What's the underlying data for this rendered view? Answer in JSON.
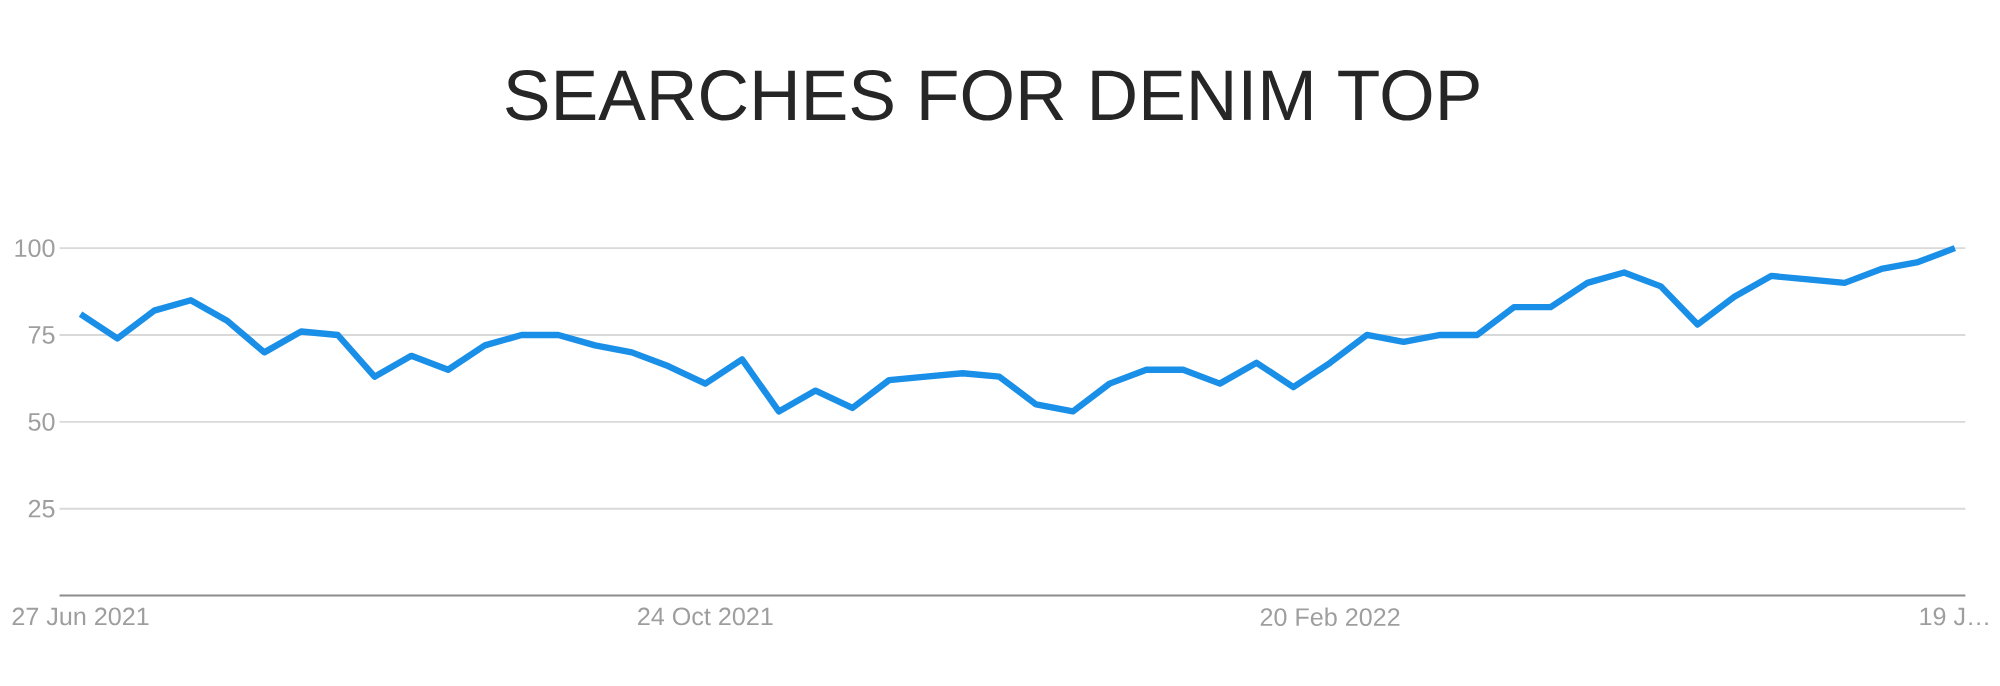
{
  "chart_data": {
    "type": "line",
    "title": "SEARCHES FOR DENIM TOP",
    "x": [
      "2021-06-27",
      "2021-07-04",
      "2021-07-11",
      "2021-07-18",
      "2021-07-25",
      "2021-08-01",
      "2021-08-08",
      "2021-08-15",
      "2021-08-22",
      "2021-08-29",
      "2021-09-05",
      "2021-09-12",
      "2021-09-19",
      "2021-09-26",
      "2021-10-03",
      "2021-10-10",
      "2021-10-17",
      "2021-10-24",
      "2021-10-31",
      "2021-11-07",
      "2021-11-14",
      "2021-11-21",
      "2021-11-28",
      "2021-12-05",
      "2021-12-12",
      "2021-12-19",
      "2021-12-26",
      "2022-01-02",
      "2022-01-09",
      "2022-01-16",
      "2022-01-23",
      "2022-01-30",
      "2022-02-06",
      "2022-02-13",
      "2022-02-20",
      "2022-02-27",
      "2022-03-06",
      "2022-03-13",
      "2022-03-20",
      "2022-03-27",
      "2022-04-03",
      "2022-04-10",
      "2022-04-17",
      "2022-04-24",
      "2022-05-01",
      "2022-05-08",
      "2022-05-15",
      "2022-05-22",
      "2022-05-29",
      "2022-06-05",
      "2022-06-12",
      "2022-06-19"
    ],
    "series": [
      {
        "color": "#1a8fe8",
        "values": [
          81,
          74,
          82,
          85,
          79,
          70,
          76,
          75,
          63,
          69,
          65,
          72,
          75,
          75,
          72,
          70,
          66,
          61,
          68,
          53,
          59,
          54,
          62,
          63,
          64,
          63,
          55,
          53,
          61,
          65,
          65,
          61,
          67,
          60,
          67,
          75,
          73,
          75,
          75,
          83,
          83,
          90,
          93,
          89,
          78,
          86,
          92,
          91,
          90,
          94,
          96,
          100
        ]
      }
    ],
    "xlim": [
      "2021-06-23",
      "2022-06-21"
    ],
    "xticks": [
      {
        "value": "2021-06-27",
        "label": "27 Jun 2021"
      },
      {
        "value": "2021-10-24",
        "label": "24 Oct 2021"
      },
      {
        "value": "2022-02-20",
        "label": "20 Feb 2022"
      },
      {
        "value": "2022-06-19",
        "label": "19 J…"
      }
    ],
    "ylim": [
      0,
      100
    ],
    "yticks": [
      25,
      50,
      75,
      100
    ],
    "grid": "y",
    "marker": "none",
    "line_style": "solid"
  }
}
